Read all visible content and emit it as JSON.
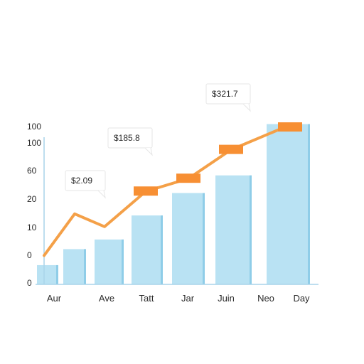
{
  "chart_data": {
    "type": "bar",
    "title": "",
    "xlabel": "",
    "ylabel": "",
    "y_tick_labels": [
      "100",
      "100",
      "60",
      "20",
      "10",
      "0",
      "0"
    ],
    "categories": [
      "Aur",
      "Ave",
      "Tatt",
      "Jar",
      "Juin",
      "Neo",
      "Day"
    ],
    "bar_series": {
      "values": [
        12,
        22,
        28,
        43,
        57,
        68,
        100
      ]
    },
    "line_series": {
      "values": [
        18,
        44,
        36,
        58,
        66,
        84,
        98
      ],
      "marker_values": [
        null,
        null,
        null,
        58,
        66,
        84,
        98
      ]
    },
    "callouts": [
      {
        "text": "$2.09",
        "category_index": 1
      },
      {
        "text": "$185.8",
        "category_index": 2
      },
      {
        "text": "$321.7",
        "category_index": 5
      }
    ],
    "ylim": [
      0,
      110
    ],
    "grid": false,
    "colors": {
      "bar_fill": "#b9e2f3",
      "bar_edge": "#8fcde8",
      "line": "#f4a048",
      "marker": "#f78f33",
      "axis": "#a9d4ea",
      "callout_bg": "#ffffff"
    }
  }
}
